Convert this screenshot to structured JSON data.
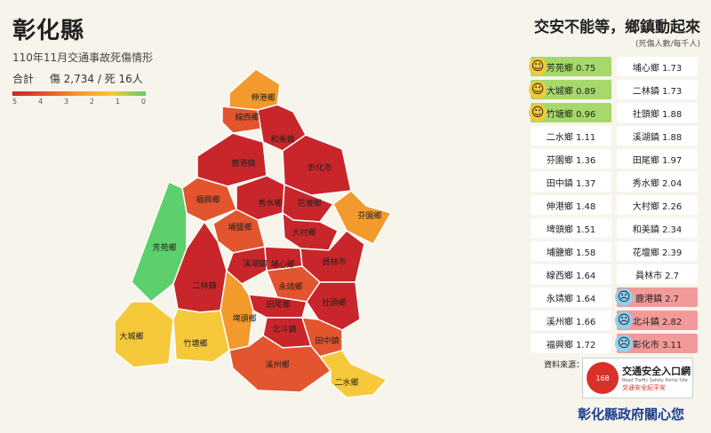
{
  "title": "彰化縣",
  "subtitle": "110年11月交通事故死傷情形",
  "totals": {
    "label": "合計",
    "injuries": "傷 2,734 / 死 16人"
  },
  "scale": [
    "5",
    "4",
    "3",
    "2",
    "1",
    "0"
  ],
  "headline": "交安不能等，鄉鎮動起來",
  "unit": "(死傷人數/每千人)",
  "colors": {
    "dark_red": "#c8262b",
    "red_orange": "#e2552e",
    "orange": "#f29a2c",
    "yellow": "#f5c93a",
    "green": "#5dcf6c",
    "good_bg": "#a6d96a",
    "bad_bg": "#f29a9a"
  },
  "rank_left": [
    {
      "name": "芳苑鄉",
      "value": "0.75",
      "face": "smile"
    },
    {
      "name": "大城鄉",
      "value": "0.89",
      "face": "smile"
    },
    {
      "name": "竹塘鄉",
      "value": "0.96",
      "face": "smile"
    },
    {
      "name": "二水鄉",
      "value": "1.11"
    },
    {
      "name": "芬園鄉",
      "value": "1.36"
    },
    {
      "name": "田中鎮",
      "value": "1.37"
    },
    {
      "name": "伸港鄉",
      "value": "1.48"
    },
    {
      "name": "埤頭鄉",
      "value": "1.51"
    },
    {
      "name": "埔鹽鄉",
      "value": "1.58"
    },
    {
      "name": "線西鄉",
      "value": "1.64"
    },
    {
      "name": "永靖鄉",
      "value": "1.64"
    },
    {
      "name": "溪州鄉",
      "value": "1.66"
    },
    {
      "name": "福興鄉",
      "value": "1.72"
    }
  ],
  "rank_right": [
    {
      "name": "埔心鄉",
      "value": "1.73"
    },
    {
      "name": "二林鎮",
      "value": "1.73"
    },
    {
      "name": "社頭鄉",
      "value": "1.88"
    },
    {
      "name": "溪湖鎮",
      "value": "1.88"
    },
    {
      "name": "田尾鄉",
      "value": "1.97"
    },
    {
      "name": "秀水鄉",
      "value": "2.04"
    },
    {
      "name": "大村鄉",
      "value": "2.26"
    },
    {
      "name": "和美鎮",
      "value": "2.34"
    },
    {
      "name": "花壇鄉",
      "value": "2.39"
    },
    {
      "name": "員林市",
      "value": "2.7"
    },
    {
      "name": "鹿港鎮",
      "value": "2.7",
      "face": "worried"
    },
    {
      "name": "北斗鎮",
      "value": "2.82",
      "face": "worried"
    },
    {
      "name": "彰化市",
      "value": "3.11",
      "face": "worried"
    }
  ],
  "source_label": "資料來源：",
  "logo": {
    "mark": "168",
    "line1": "交通安全入口網",
    "line2": "Road Traffic Safety Portal Site",
    "line3": "交通安全紀平安"
  },
  "footer": "彰化縣政府關心您",
  "map_labels": [
    "伸港鄉",
    "線西鄉",
    "和美鎮",
    "鹿港鎮",
    "彰化市",
    "福興鄉",
    "秀水鄉",
    "花壇鄉",
    "芬園鄉",
    "芳苑鄉",
    "埔鹽鄉",
    "大村鄉",
    "溪湖鎮",
    "埔心鄉",
    "員林市",
    "二林鎮",
    "永靖鄉",
    "社頭鄉",
    "田尾鄉",
    "埤頭鄉",
    "北斗鎮",
    "田中鎮",
    "大城鄉",
    "竹塘鄉",
    "溪州鄉",
    "二水鄉"
  ]
}
